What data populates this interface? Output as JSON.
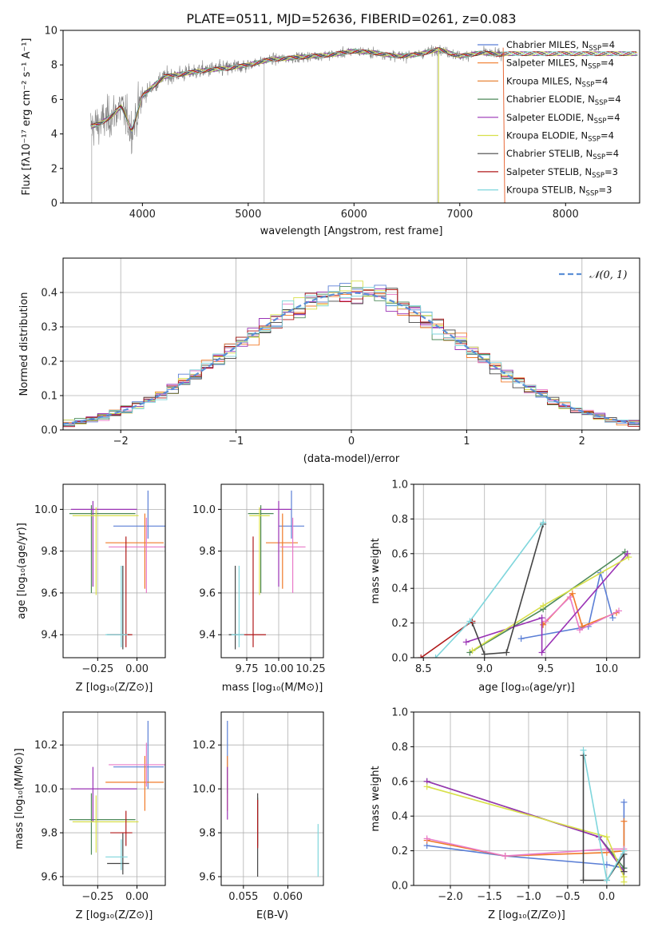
{
  "figure_title": "PLATE=0511, MJD=52636, FIBERID=0261, z=0.083",
  "colors": {
    "chabrier_miles": "#5b7fd6",
    "salpeter_miles": "#f07a28",
    "kroupa_miles": "#e8863a",
    "chabrier_elodie": "#4e8a5a",
    "salpeter_elodie": "#9a32b5",
    "kroupa_elodie": "#d8e04a",
    "chabrier_stelib": "#444444",
    "salpeter_stelib": "#b0191a",
    "kroupa_stelib": "#7fd6dc",
    "normal_curve": "#5b8fd6",
    "observed": "#808080",
    "pink_extra": "#e87ac8",
    "lime_extra": "#a6d63a"
  },
  "chart_data": [
    {
      "id": "spectrum",
      "type": "line",
      "title": "PLATE=0511, MJD=52636, FIBERID=0261, z=0.083",
      "xlabel": "wavelength [Angstrom, rest frame]",
      "ylabel": "Flux [fλ10⁻¹⁷ erg cm⁻² s⁻¹ A⁻¹]",
      "xlim": [
        3250,
        8700
      ],
      "ylim": [
        0,
        10
      ],
      "xticks": [
        4000,
        5000,
        6000,
        7000,
        8000
      ],
      "yticks": [
        0,
        2,
        4,
        6,
        8,
        10
      ],
      "continuum_knots": {
        "x": [
          3500,
          3600,
          3700,
          3800,
          3900,
          4000,
          4200,
          4400,
          4600,
          4800,
          5000,
          5200,
          5400,
          5600,
          5800,
          6000,
          6200,
          6400,
          6600,
          6800,
          7000,
          7200,
          7400
        ],
        "y": [
          4.4,
          4.6,
          5.0,
          5.6,
          4.2,
          6.2,
          7.3,
          7.5,
          7.7,
          7.8,
          8.0,
          8.3,
          8.4,
          8.5,
          8.6,
          8.8,
          8.7,
          8.5,
          8.6,
          8.9,
          8.5,
          8.7,
          8.6
        ]
      },
      "legend": [
        {
          "label": "Chabrier MILES, N",
          "sub": "SSP",
          "tail": "=4"
        },
        {
          "label": "Salpeter MILES, N",
          "sub": "SSP",
          "tail": "=4"
        },
        {
          "label": "Kroupa MILES, N",
          "sub": "SSP",
          "tail": "=4"
        },
        {
          "label": "Chabrier ELODIE, N",
          "sub": "SSP",
          "tail": "=4"
        },
        {
          "label": "Salpeter ELODIE, N",
          "sub": "SSP",
          "tail": "=4"
        },
        {
          "label": "Kroupa ELODIE, N",
          "sub": "SSP",
          "tail": "=4"
        },
        {
          "label": "Chabrier STELIB, N",
          "sub": "SSP",
          "tail": "=4"
        },
        {
          "label": "Salpeter STELIB, N",
          "sub": "SSP",
          "tail": "=3"
        },
        {
          "label": "Kroupa STELIB, N",
          "sub": "SSP",
          "tail": "=3"
        }
      ],
      "legend_position": "upper-right",
      "grid": false
    },
    {
      "id": "residuals",
      "type": "step",
      "xlabel": "(data-model)/error",
      "ylabel": "Normed distribution",
      "xlim": [
        -2.5,
        2.5
      ],
      "ylim": [
        0,
        0.5
      ],
      "xticks": [
        -2,
        -1,
        0,
        1,
        2
      ],
      "xtick_labels": [
        "−2",
        "−1",
        "0",
        "1",
        "2"
      ],
      "yticks": [
        0.0,
        0.1,
        0.2,
        0.3,
        0.4
      ],
      "yticklabels": [
        "0.0",
        "0.1",
        "0.2",
        "0.3",
        "0.4"
      ],
      "bin_width": 0.1,
      "legend": [
        {
          "label": "𝒩(0, 1)",
          "style": "dashed"
        }
      ],
      "legend_position": "upper-right",
      "grid": true
    },
    {
      "id": "age_vs_Z",
      "type": "errorbar",
      "xlabel": "Z [log₁₀(Z/Z⊙)]",
      "ylabel": "age  [log₁₀(age/yr)]",
      "xlim": [
        -0.47,
        0.18
      ],
      "ylim": [
        9.29,
        10.12
      ],
      "xticks": [
        -0.25,
        0.0
      ],
      "xtick_labels": [
        "−0.25",
        "0.00"
      ],
      "yticks": [
        9.4,
        9.6,
        9.8,
        10.0
      ],
      "yticklabels": [
        "9.4",
        "9.6",
        "9.8",
        "10.0"
      ],
      "grid": true,
      "points": [
        {
          "x": 0.07,
          "y": 9.92,
          "xerr": [
            0.22,
            0.22
          ],
          "yerr": [
            0.06,
            0.17
          ],
          "color": "chabrier_miles"
        },
        {
          "x": 0.05,
          "y": 9.84,
          "xerr": [
            0.25,
            0.12
          ],
          "yerr": [
            0.22,
            0.14
          ],
          "color": "salpeter_miles"
        },
        {
          "x": 0.06,
          "y": 9.82,
          "xerr": [
            0.24,
            0.12
          ],
          "yerr": [
            0.22,
            0.14
          ],
          "color": "pink_extra"
        },
        {
          "x": -0.29,
          "y": 9.98,
          "xerr": [
            0.14,
            0.28
          ],
          "yerr": [
            0.38,
            0.04
          ],
          "color": "chabrier_elodie"
        },
        {
          "x": -0.28,
          "y": 10.0,
          "xerr": [
            0.14,
            0.28
          ],
          "yerr": [
            0.37,
            0.04
          ],
          "color": "salpeter_elodie"
        },
        {
          "x": -0.26,
          "y": 9.97,
          "xerr": [
            0.15,
            0.27
          ],
          "yerr": [
            0.38,
            0.04
          ],
          "color": "kroupa_elodie"
        },
        {
          "x": -0.09,
          "y": 9.4,
          "xerr": [
            0.1,
            0.04
          ],
          "yerr": [
            0.07,
            0.33
          ],
          "color": "chabrier_stelib"
        },
        {
          "x": -0.07,
          "y": 9.4,
          "xerr": [
            0.1,
            0.04
          ],
          "yerr": [
            0.06,
            0.47
          ],
          "color": "salpeter_stelib"
        },
        {
          "x": -0.1,
          "y": 9.4,
          "xerr": [
            0.1,
            0.04
          ],
          "yerr": [
            0.06,
            0.33
          ],
          "color": "kroupa_stelib"
        }
      ]
    },
    {
      "id": "age_vs_mass",
      "type": "errorbar",
      "xlabel": "mass [log₁₀(M/M⊙)]",
      "ylabel": "",
      "xlim": [
        9.55,
        10.35
      ],
      "ylim": [
        9.29,
        10.12
      ],
      "xticks": [
        9.75,
        10.0,
        10.25
      ],
      "xtick_labels": [
        "9.75",
        "10.00",
        "10.25"
      ],
      "yticks": [
        9.4,
        9.6,
        9.8,
        10.0
      ],
      "yticklabels": [
        "9.4",
        "9.6",
        "9.8",
        "10.0"
      ],
      "grid": true,
      "points": [
        {
          "x": 10.1,
          "y": 9.92,
          "xerr": [
            0.1,
            0.1
          ],
          "yerr": [
            0.06,
            0.17
          ],
          "color": "chabrier_miles"
        },
        {
          "x": 10.03,
          "y": 9.84,
          "xerr": [
            0.13,
            0.12
          ],
          "yerr": [
            0.22,
            0.14
          ],
          "color": "salpeter_miles"
        },
        {
          "x": 10.11,
          "y": 9.82,
          "xerr": [
            0.1,
            0.1
          ],
          "yerr": [
            0.22,
            0.14
          ],
          "color": "pink_extra"
        },
        {
          "x": 9.86,
          "y": 9.98,
          "xerr": [
            0.1,
            0.1
          ],
          "yerr": [
            0.38,
            0.04
          ],
          "color": "chabrier_elodie"
        },
        {
          "x": 10.0,
          "y": 10.0,
          "xerr": [
            0.15,
            0.1
          ],
          "yerr": [
            0.37,
            0.04
          ],
          "color": "salpeter_elodie"
        },
        {
          "x": 9.85,
          "y": 9.97,
          "xerr": [
            0.08,
            0.08
          ],
          "yerr": [
            0.38,
            0.04
          ],
          "color": "kroupa_elodie"
        },
        {
          "x": 9.66,
          "y": 9.4,
          "xerr": [
            0.05,
            0.05
          ],
          "yerr": [
            0.07,
            0.33
          ],
          "color": "chabrier_stelib"
        },
        {
          "x": 9.8,
          "y": 9.4,
          "xerr": [
            0.1,
            0.1
          ],
          "yerr": [
            0.06,
            0.47
          ],
          "color": "salpeter_stelib"
        },
        {
          "x": 9.69,
          "y": 9.4,
          "xerr": [
            0.06,
            0.04
          ],
          "yerr": [
            0.06,
            0.33
          ],
          "color": "kroupa_stelib"
        }
      ]
    },
    {
      "id": "mass_weight_vs_age",
      "type": "line",
      "xlabel": "age  [log₁₀(age/yr)]",
      "ylabel": "mass weight",
      "xlim": [
        8.42,
        10.27
      ],
      "ylim": [
        0,
        1
      ],
      "xticks": [
        8.5,
        9.0,
        9.5,
        10.0
      ],
      "xtick_labels": [
        "8.5",
        "9.0",
        "9.5",
        "10.0"
      ],
      "yticks": [
        0.0,
        0.2,
        0.4,
        0.6,
        0.8,
        1.0
      ],
      "yticklabels": [
        "0.0",
        "0.2",
        "0.4",
        "0.6",
        "0.8",
        "1.0"
      ],
      "grid": true,
      "series": [
        {
          "color": "chabrier_miles",
          "x": [
            9.3,
            9.85,
            9.95,
            10.05
          ],
          "y": [
            0.11,
            0.18,
            0.49,
            0.23
          ]
        },
        {
          "color": "salpeter_miles",
          "x": [
            9.48,
            9.72,
            9.8,
            10.08
          ],
          "y": [
            0.19,
            0.37,
            0.18,
            0.26
          ]
        },
        {
          "color": "pink_extra",
          "x": [
            9.5,
            9.7,
            9.78,
            10.1
          ],
          "y": [
            0.21,
            0.35,
            0.16,
            0.27
          ]
        },
        {
          "color": "chabrier_elodie",
          "x": [
            8.88,
            9.48,
            10.15
          ],
          "y": [
            0.03,
            0.28,
            0.61
          ]
        },
        {
          "color": "salpeter_elodie",
          "x": [
            8.85,
            9.47,
            9.47,
            10.17
          ],
          "y": [
            0.09,
            0.23,
            0.03,
            0.6
          ]
        },
        {
          "color": "kroupa_elodie",
          "x": [
            8.9,
            9.48,
            10.18
          ],
          "y": [
            0.04,
            0.3,
            0.58
          ]
        },
        {
          "color": "chabrier_stelib",
          "x": [
            8.9,
            9.0,
            9.18,
            9.48
          ],
          "y": [
            0.2,
            0.02,
            0.03,
            0.77
          ]
        },
        {
          "color": "salpeter_stelib",
          "x": [
            8.48,
            8.9
          ],
          "y": [
            0.0,
            0.21
          ]
        },
        {
          "color": "kroupa_stelib",
          "x": [
            8.6,
            8.88,
            9.48
          ],
          "y": [
            0.0,
            0.21,
            0.78
          ]
        }
      ]
    },
    {
      "id": "mass_vs_Z",
      "type": "errorbar",
      "xlabel": "Z [log₁₀(Z/Z⊙)]",
      "ylabel": "mass [log₁₀(M/M⊙)]",
      "xlim": [
        -0.47,
        0.18
      ],
      "ylim": [
        9.56,
        10.35
      ],
      "xticks": [
        -0.25,
        0.0
      ],
      "xtick_labels": [
        "−0.25",
        "0.00"
      ],
      "yticks": [
        9.6,
        9.8,
        10.0,
        10.2
      ],
      "yticklabels": [
        "9.6",
        "9.8",
        "10.0",
        "10.2"
      ],
      "grid": true,
      "points": [
        {
          "x": 0.07,
          "y": 10.1,
          "xerr": [
            0.22,
            0.1
          ],
          "yerr": [
            0.1,
            0.21
          ],
          "color": "chabrier_miles"
        },
        {
          "x": 0.05,
          "y": 10.03,
          "xerr": [
            0.25,
            0.12
          ],
          "yerr": [
            0.13,
            0.12
          ],
          "color": "salpeter_miles"
        },
        {
          "x": 0.06,
          "y": 10.11,
          "xerr": [
            0.24,
            0.12
          ],
          "yerr": [
            0.1,
            0.1
          ],
          "color": "pink_extra"
        },
        {
          "x": -0.29,
          "y": 9.86,
          "xerr": [
            0.14,
            0.28
          ],
          "yerr": [
            0.16,
            0.12
          ],
          "color": "chabrier_elodie"
        },
        {
          "x": -0.28,
          "y": 10.0,
          "xerr": [
            0.14,
            0.28
          ],
          "yerr": [
            0.15,
            0.1
          ],
          "color": "salpeter_elodie"
        },
        {
          "x": -0.26,
          "y": 9.85,
          "xerr": [
            0.15,
            0.27
          ],
          "yerr": [
            0.14,
            0.12
          ],
          "color": "kroupa_elodie"
        },
        {
          "x": -0.09,
          "y": 9.66,
          "xerr": [
            0.1,
            0.04
          ],
          "yerr": [
            0.05,
            0.14
          ],
          "color": "chabrier_stelib"
        },
        {
          "x": -0.07,
          "y": 9.8,
          "xerr": [
            0.1,
            0.04
          ],
          "yerr": [
            0.06,
            0.1
          ],
          "color": "salpeter_stelib"
        },
        {
          "x": -0.1,
          "y": 9.69,
          "xerr": [
            0.1,
            0.04
          ],
          "yerr": [
            0.06,
            0.08
          ],
          "color": "kroupa_stelib"
        }
      ]
    },
    {
      "id": "mass_vs_ebv",
      "type": "errorbar",
      "xlabel": "E(B-V)",
      "ylabel": "",
      "xlim": [
        0.0525,
        0.064
      ],
      "ylim": [
        9.56,
        10.35
      ],
      "xticks": [
        0.055,
        0.06
      ],
      "xtick_labels": [
        "0.055",
        "0.060"
      ],
      "yticks": [
        9.6,
        9.8,
        10.0,
        10.2
      ],
      "yticklabels": [
        "9.6",
        "9.8",
        "10.0",
        "10.2"
      ],
      "grid": true,
      "points": [
        {
          "x": 0.0532,
          "y": 10.1,
          "xerr": [
            0,
            0
          ],
          "yerr": [
            0.12,
            0.21
          ],
          "color": "chabrier_miles"
        },
        {
          "x": 0.0532,
          "y": 10.03,
          "xerr": [
            0,
            0
          ],
          "yerr": [
            0.13,
            0.12
          ],
          "color": "salpeter_miles"
        },
        {
          "x": 0.0532,
          "y": 10.0,
          "xerr": [
            0,
            0
          ],
          "yerr": [
            0.14,
            0.1
          ],
          "color": "salpeter_elodie"
        },
        {
          "x": 0.0566,
          "y": 9.86,
          "xerr": [
            0,
            0
          ],
          "yerr": [
            0.12,
            0.1
          ],
          "color": "chabrier_elodie"
        },
        {
          "x": 0.0566,
          "y": 9.8,
          "xerr": [
            0,
            0
          ],
          "yerr": [
            0.2,
            0.18
          ],
          "color": "chabrier_stelib"
        },
        {
          "x": 0.0566,
          "y": 9.85,
          "xerr": [
            0,
            0
          ],
          "yerr": [
            0.12,
            0.1
          ],
          "color": "salpeter_stelib"
        },
        {
          "x": 0.0634,
          "y": 9.7,
          "xerr": [
            0,
            0
          ],
          "yerr": [
            0.1,
            0.14
          ],
          "color": "kroupa_stelib"
        }
      ]
    },
    {
      "id": "mass_weight_vs_Z",
      "type": "line",
      "xlabel": "Z [log₁₀(Z/Z⊙)]",
      "ylabel": "mass weight",
      "xlim": [
        -2.47,
        0.42
      ],
      "ylim": [
        0,
        1
      ],
      "xticks": [
        -2.0,
        -1.5,
        -1.0,
        -0.5,
        0.0
      ],
      "xtick_labels": [
        "−2.0",
        "−1.5",
        "−1.0",
        "−0.5",
        "0.0"
      ],
      "yticks": [
        0.0,
        0.2,
        0.4,
        0.6,
        0.8,
        1.0
      ],
      "yticklabels": [
        "0.0",
        "0.2",
        "0.4",
        "0.6",
        "0.8",
        "1.0"
      ],
      "grid": true,
      "series": [
        {
          "color": "chabrier_miles",
          "x": [
            -2.3,
            -1.3,
            0.0,
            0.22,
            0.22
          ],
          "y": [
            0.23,
            0.17,
            0.12,
            0.1,
            0.48
          ]
        },
        {
          "color": "salpeter_miles",
          "x": [
            -2.3,
            -1.3,
            0.0,
            0.22,
            0.22
          ],
          "y": [
            0.26,
            0.17,
            0.19,
            0.2,
            0.37
          ]
        },
        {
          "color": "pink_extra",
          "x": [
            -2.3,
            -1.3,
            0.0,
            0.22
          ],
          "y": [
            0.27,
            0.17,
            0.21,
            0.21
          ]
        },
        {
          "color": "chabrier_elodie",
          "x": [
            -2.3,
            -0.1,
            0.22
          ],
          "y": [
            0.6,
            0.28,
            0.1
          ]
        },
        {
          "color": "salpeter_elodie",
          "x": [
            -2.3,
            -0.1,
            0.22
          ],
          "y": [
            0.6,
            0.28,
            0.08
          ]
        },
        {
          "color": "kroupa_elodie",
          "x": [
            -2.3,
            0.0,
            0.22,
            0.22
          ],
          "y": [
            0.57,
            0.28,
            0.05,
            0.02
          ]
        },
        {
          "color": "chabrier_stelib",
          "x": [
            -0.3,
            -0.3,
            0.0,
            0.22,
            0.22
          ],
          "y": [
            0.75,
            0.03,
            0.03,
            0.18,
            0.08
          ]
        },
        {
          "color": "kroupa_stelib",
          "x": [
            -0.3,
            0.0,
            0.22
          ],
          "y": [
            0.78,
            0.03,
            0.2
          ]
        }
      ]
    }
  ]
}
